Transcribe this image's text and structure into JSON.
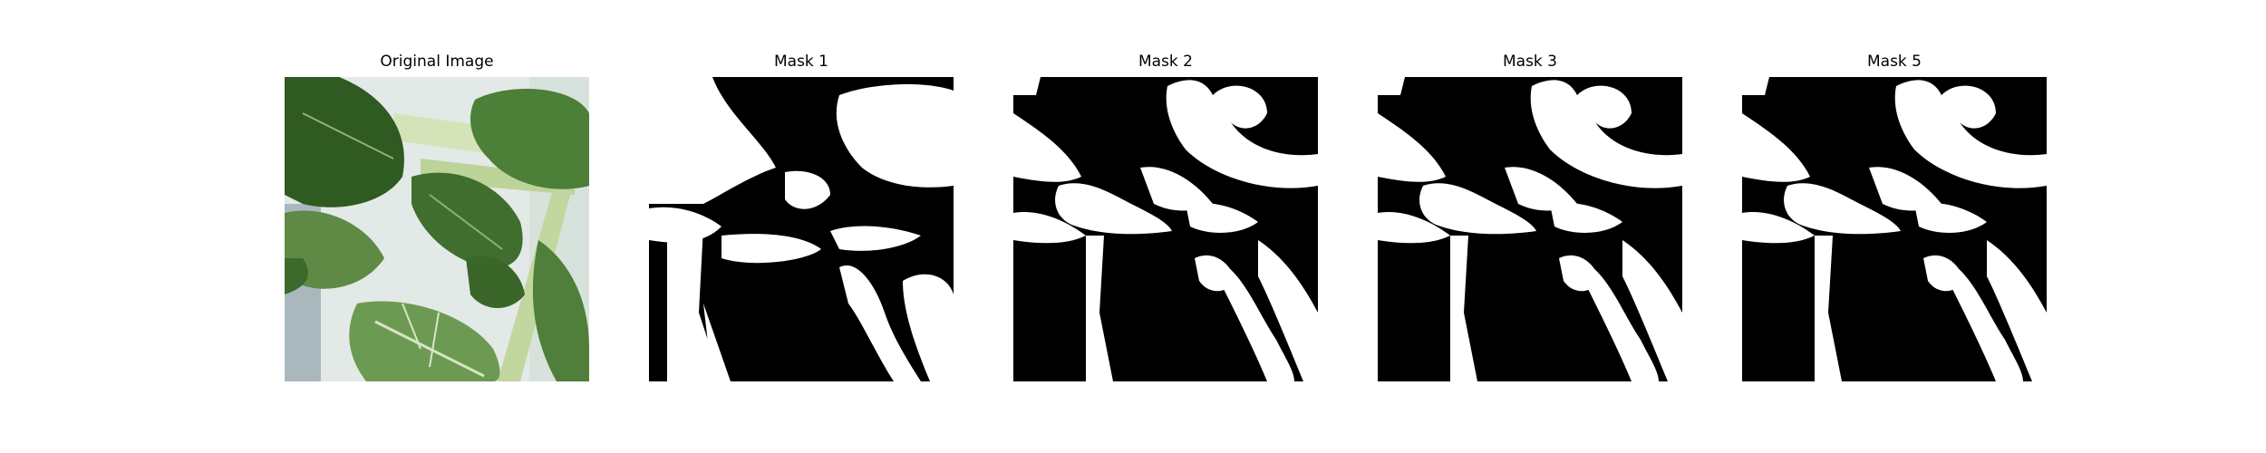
{
  "panels": [
    {
      "title": "Original Image"
    },
    {
      "title": "Mask 1"
    },
    {
      "title": "Mask 2"
    },
    {
      "title": "Mask 3"
    },
    {
      "title": "Mask 5"
    }
  ],
  "colors": {
    "background": "#ffffff",
    "mask_fg": "#ffffff",
    "mask_bg": "#000000",
    "leaf_dark": "#2f5a22",
    "leaf_mid": "#4c7f37",
    "leaf_light": "#7aa35a",
    "stem": "#c8d9a8",
    "backdrop": "#dfe6e4"
  }
}
